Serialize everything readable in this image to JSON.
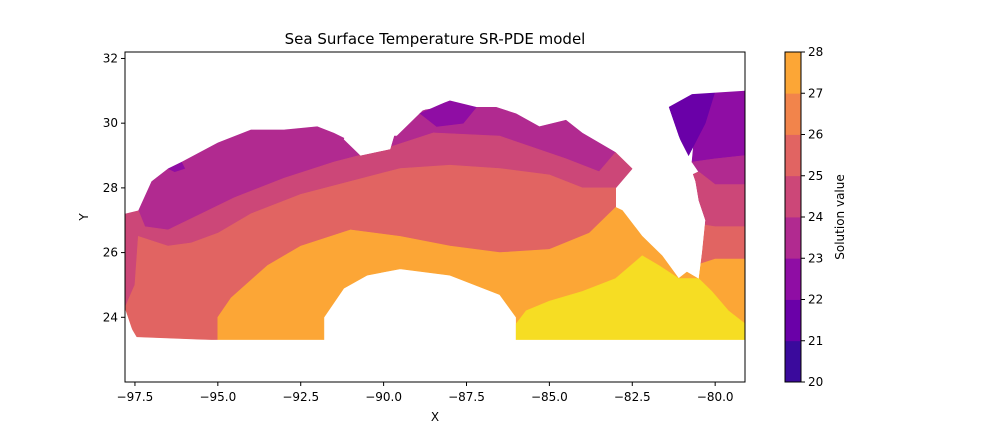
{
  "chart_data": {
    "type": "filled-contour",
    "title": "Sea Surface Temperature SR-PDE model",
    "xlabel": "X",
    "ylabel": "Y",
    "xlim": [
      -97.8,
      -79.1
    ],
    "ylim": [
      22.0,
      32.2
    ],
    "x_ticks": [
      -97.5,
      -95.0,
      -92.5,
      -90.0,
      -87.5,
      -85.0,
      -82.5,
      -80.0
    ],
    "x_tick_labels": [
      "−97.5",
      "−95.0",
      "−92.5",
      "−90.0",
      "−87.5",
      "−85.0",
      "−82.5",
      "−80.0"
    ],
    "y_ticks": [
      24,
      26,
      28,
      30,
      32
    ],
    "y_tick_labels": [
      "24",
      "26",
      "28",
      "30",
      "32"
    ],
    "colorbar": {
      "label": "Solution value",
      "levels": [
        20,
        21,
        22,
        23,
        24,
        25,
        26,
        27,
        28
      ],
      "tick_labels": [
        "20",
        "21",
        "22",
        "23",
        "24",
        "25",
        "26",
        "27",
        "28"
      ],
      "colors": [
        "#3a0a9c",
        "#6a00a8",
        "#8f0da4",
        "#b12a90",
        "#cc4778",
        "#e16462",
        "#f2844b",
        "#fca636",
        "#f6dd23"
      ]
    },
    "regions": [
      {
        "band": "23-24",
        "color": "#b12a90",
        "points": [
          [
            -97.4,
            27.3
          ],
          [
            -97.0,
            28.2
          ],
          [
            -96.5,
            28.6
          ],
          [
            -96.1,
            28.8
          ],
          [
            -95.0,
            29.4
          ],
          [
            -94.0,
            29.8
          ],
          [
            -93.0,
            29.8
          ],
          [
            -92.0,
            29.9
          ],
          [
            -91.5,
            29.7
          ],
          [
            -91.0,
            29.7
          ],
          [
            -90.5,
            29.6
          ],
          [
            -89.6,
            29.6
          ],
          [
            -88.8,
            30.4
          ],
          [
            -87.5,
            30.6
          ],
          [
            -86.6,
            30.5
          ],
          [
            -86.0,
            30.3
          ],
          [
            -85.3,
            29.9
          ],
          [
            -84.5,
            30.1
          ],
          [
            -84.0,
            29.7
          ],
          [
            -83.0,
            29.1
          ],
          [
            -83.5,
            28.5
          ],
          [
            -84.5,
            28.9
          ],
          [
            -86.5,
            29.6
          ],
          [
            -88.5,
            29.7
          ],
          [
            -90.0,
            29.2
          ],
          [
            -91.5,
            28.8
          ],
          [
            -93.0,
            28.3
          ],
          [
            -94.5,
            27.7
          ],
          [
            -95.5,
            27.2
          ],
          [
            -96.5,
            26.7
          ],
          [
            -97.2,
            26.8
          ]
        ]
      },
      {
        "band": "22-23",
        "color": "#8f0da4",
        "points": [
          [
            -88.9,
            30.3
          ],
          [
            -88.0,
            30.7
          ],
          [
            -87.2,
            30.5
          ],
          [
            -87.6,
            30.0
          ],
          [
            -88.4,
            29.9
          ]
        ]
      },
      {
        "band": "22-23",
        "color": "#8f0da4",
        "points": [
          [
            -96.5,
            28.6
          ],
          [
            -96.1,
            28.8
          ],
          [
            -96.0,
            28.6
          ],
          [
            -96.3,
            28.5
          ]
        ]
      },
      {
        "band": "22-23",
        "color": "#8f0da4",
        "points": [
          [
            -80.5,
            31.0
          ],
          [
            -79.1,
            31.0
          ],
          [
            -79.1,
            29.0
          ],
          [
            -80.0,
            28.9
          ],
          [
            -80.7,
            28.8
          ]
        ]
      },
      {
        "band": "21-22",
        "color": "#6a00a8",
        "points": [
          [
            -81.4,
            30.5
          ],
          [
            -80.7,
            30.9
          ],
          [
            -80.0,
            31.0
          ],
          [
            -80.3,
            30.0
          ],
          [
            -80.8,
            29.0
          ],
          [
            -81.1,
            29.6
          ]
        ]
      },
      {
        "band": "23-24",
        "color": "#b12a90",
        "points": [
          [
            -80.7,
            28.8
          ],
          [
            -80.0,
            28.9
          ],
          [
            -79.1,
            29.0
          ],
          [
            -79.1,
            28.1
          ],
          [
            -80.0,
            28.1
          ],
          [
            -80.5,
            28.5
          ]
        ]
      },
      {
        "band": "24-25",
        "color": "#cc4778",
        "points": [
          [
            -97.4,
            27.3
          ],
          [
            -97.2,
            26.8
          ],
          [
            -96.5,
            26.7
          ],
          [
            -95.5,
            27.2
          ],
          [
            -94.5,
            27.7
          ],
          [
            -93.0,
            28.3
          ],
          [
            -91.5,
            28.8
          ],
          [
            -90.0,
            29.2
          ],
          [
            -88.5,
            29.7
          ],
          [
            -86.5,
            29.6
          ],
          [
            -84.5,
            28.9
          ],
          [
            -83.5,
            28.5
          ],
          [
            -83.0,
            29.1
          ],
          [
            -82.5,
            28.6
          ],
          [
            -83.0,
            28.0
          ],
          [
            -84.0,
            28.0
          ],
          [
            -85.0,
            28.4
          ],
          [
            -86.5,
            28.6
          ],
          [
            -88.0,
            28.7
          ],
          [
            -89.5,
            28.6
          ],
          [
            -91.0,
            28.2
          ],
          [
            -92.5,
            27.8
          ],
          [
            -94.0,
            27.2
          ],
          [
            -95.0,
            26.6
          ],
          [
            -95.8,
            26.3
          ],
          [
            -96.5,
            26.2
          ],
          [
            -97.4,
            26.5
          ],
          [
            -97.5,
            25.0
          ],
          [
            -97.8,
            24.3
          ],
          [
            -97.8,
            27.2
          ]
        ]
      },
      {
        "band": "24-25",
        "color": "#cc4778",
        "points": [
          [
            -80.7,
            28.4
          ],
          [
            -80.5,
            28.5
          ],
          [
            -80.0,
            28.1
          ],
          [
            -79.1,
            28.1
          ],
          [
            -79.1,
            26.8
          ],
          [
            -80.0,
            26.8
          ],
          [
            -80.6,
            26.9
          ]
        ]
      },
      {
        "band": "25-26",
        "color": "#e16462",
        "points": [
          [
            -97.8,
            24.3
          ],
          [
            -97.5,
            23.4
          ],
          [
            -95.0,
            23.3
          ],
          [
            -95.0,
            24.0
          ],
          [
            -94.6,
            24.6
          ],
          [
            -93.5,
            25.6
          ],
          [
            -92.5,
            26.2
          ],
          [
            -91.0,
            26.7
          ],
          [
            -89.5,
            26.5
          ],
          [
            -88.0,
            26.2
          ],
          [
            -86.5,
            26.0
          ],
          [
            -85.0,
            26.1
          ],
          [
            -83.8,
            26.6
          ],
          [
            -83.0,
            27.4
          ],
          [
            -83.0,
            28.0
          ],
          [
            -84.0,
            28.0
          ],
          [
            -85.0,
            28.4
          ],
          [
            -86.5,
            28.6
          ],
          [
            -88.0,
            28.7
          ],
          [
            -89.5,
            28.6
          ],
          [
            -91.0,
            28.2
          ],
          [
            -92.5,
            27.8
          ],
          [
            -94.0,
            27.2
          ],
          [
            -95.0,
            26.6
          ],
          [
            -95.8,
            26.3
          ],
          [
            -96.5,
            26.2
          ],
          [
            -97.4,
            26.5
          ],
          [
            -97.5,
            25.0
          ]
        ]
      },
      {
        "band": "25-26",
        "color": "#e16462",
        "points": [
          [
            -80.6,
            26.9
          ],
          [
            -80.0,
            26.8
          ],
          [
            -79.1,
            26.8
          ],
          [
            -79.1,
            25.8
          ],
          [
            -80.0,
            25.8
          ],
          [
            -80.6,
            25.6
          ]
        ]
      },
      {
        "band": "26-27",
        "color": "#fca636",
        "points": [
          [
            -95.0,
            23.3
          ],
          [
            -91.8,
            23.3
          ],
          [
            -91.8,
            24.0
          ],
          [
            -91.2,
            24.9
          ],
          [
            -90.5,
            25.3
          ],
          [
            -89.5,
            25.5
          ],
          [
            -88.0,
            25.3
          ],
          [
            -86.5,
            24.7
          ],
          [
            -86.0,
            24.0
          ],
          [
            -86.0,
            23.3
          ],
          [
            -79.1,
            23.3
          ],
          [
            -79.1,
            25.8
          ],
          [
            -80.0,
            25.8
          ],
          [
            -80.6,
            25.6
          ],
          [
            -81.1,
            25.2
          ],
          [
            -81.6,
            25.9
          ],
          [
            -82.2,
            26.5
          ],
          [
            -82.8,
            27.3
          ],
          [
            -83.0,
            27.4
          ],
          [
            -83.8,
            26.6
          ],
          [
            -85.0,
            26.1
          ],
          [
            -86.5,
            26.0
          ],
          [
            -88.0,
            26.2
          ],
          [
            -89.5,
            26.5
          ],
          [
            -91.0,
            26.7
          ],
          [
            -92.5,
            26.2
          ],
          [
            -93.5,
            25.6
          ],
          [
            -94.6,
            24.6
          ],
          [
            -95.0,
            24.0
          ]
        ]
      },
      {
        "band": "27-28",
        "color": "#f6dd23",
        "points": [
          [
            -86.0,
            23.3
          ],
          [
            -79.1,
            23.3
          ],
          [
            -79.1,
            23.8
          ],
          [
            -79.6,
            24.2
          ],
          [
            -80.1,
            24.8
          ],
          [
            -80.5,
            25.2
          ],
          [
            -81.1,
            25.2
          ],
          [
            -81.7,
            25.6
          ],
          [
            -82.2,
            25.9
          ],
          [
            -83.0,
            25.2
          ],
          [
            -84.0,
            24.8
          ],
          [
            -85.0,
            24.5
          ],
          [
            -85.7,
            24.2
          ],
          [
            -86.0,
            23.8
          ]
        ]
      }
    ],
    "mask_polygons": [
      {
        "name": "florida-peninsula",
        "points": [
          [
            -82.5,
            31.2
          ],
          [
            -82.5,
            28.6
          ],
          [
            -82.1,
            27.8
          ],
          [
            -82.0,
            27.1
          ],
          [
            -81.6,
            26.4
          ],
          [
            -81.3,
            25.8
          ],
          [
            -81.0,
            25.5
          ],
          [
            -80.5,
            25.2
          ],
          [
            -80.4,
            26.0
          ],
          [
            -80.3,
            27.0
          ],
          [
            -80.5,
            27.6
          ],
          [
            -80.6,
            28.2
          ],
          [
            -80.8,
            28.8
          ],
          [
            -81.1,
            29.6
          ],
          [
            -81.4,
            30.5
          ],
          [
            -81.5,
            31.2
          ]
        ]
      },
      {
        "name": "mississippi-delta-notch",
        "points": [
          [
            -91.2,
            29.5
          ],
          [
            -90.7,
            29.0
          ],
          [
            -89.8,
            29.2
          ],
          [
            -89.6,
            29.9
          ],
          [
            -90.0,
            30.3
          ],
          [
            -90.9,
            30.4
          ]
        ]
      }
    ],
    "outside_polygon": [
      [
        -97.4,
        27.3
      ],
      [
        -97.0,
        28.2
      ],
      [
        -96.5,
        28.6
      ],
      [
        -96.1,
        28.8
      ],
      [
        -95.0,
        29.4
      ],
      [
        -94.0,
        29.8
      ],
      [
        -93.0,
        29.8
      ],
      [
        -92.0,
        29.9
      ],
      [
        -91.5,
        29.7
      ],
      [
        -91.1,
        29.5
      ],
      [
        -90.7,
        29.0
      ],
      [
        -89.8,
        29.2
      ],
      [
        -89.6,
        29.9
      ],
      [
        -89.2,
        30.3
      ],
      [
        -88.8,
        30.4
      ],
      [
        -88.0,
        30.7
      ],
      [
        -87.2,
        30.5
      ],
      [
        -86.6,
        30.5
      ],
      [
        -86.0,
        30.3
      ],
      [
        -85.3,
        29.9
      ],
      [
        -84.5,
        30.1
      ],
      [
        -84.0,
        29.7
      ],
      [
        -83.0,
        29.1
      ],
      [
        -82.5,
        28.6
      ],
      [
        -82.1,
        27.8
      ],
      [
        -82.0,
        27.1
      ],
      [
        -81.6,
        26.4
      ],
      [
        -81.3,
        25.8
      ],
      [
        -81.0,
        25.5
      ],
      [
        -80.5,
        25.2
      ],
      [
        -80.4,
        26.0
      ],
      [
        -80.3,
        27.0
      ],
      [
        -80.5,
        27.6
      ],
      [
        -80.6,
        28.2
      ],
      [
        -80.8,
        28.8
      ],
      [
        -81.1,
        29.6
      ],
      [
        -81.4,
        30.5
      ],
      [
        -80.7,
        30.9
      ],
      [
        -79.1,
        31.0
      ],
      [
        -79.1,
        23.3
      ],
      [
        -97.4,
        23.3
      ],
      [
        -97.8,
        24.0
      ],
      [
        -97.8,
        27.2
      ]
    ]
  }
}
